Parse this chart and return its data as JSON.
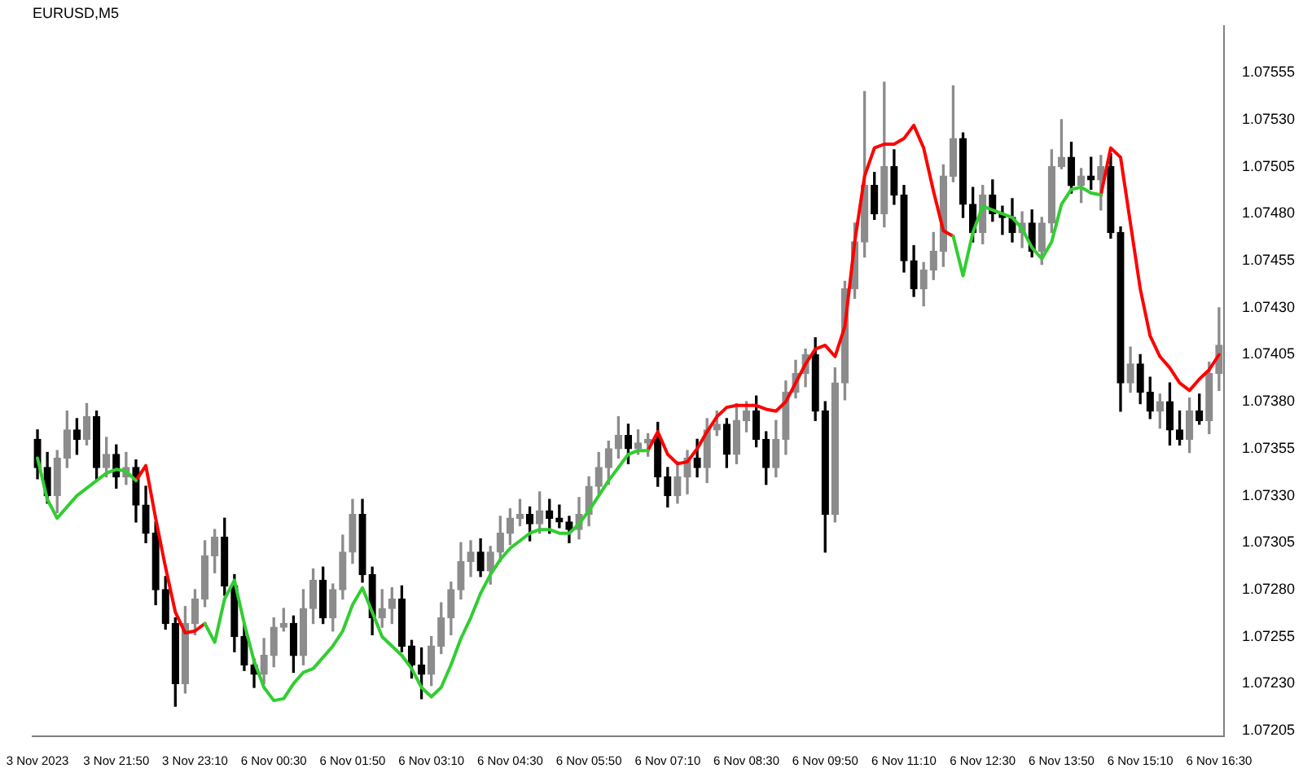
{
  "chart_data": {
    "type": "candlestick",
    "title": "EURUSD,M5",
    "categories": [
      "3 Nov 2023",
      null,
      null,
      null,
      null,
      null,
      null,
      null,
      "3 Nov 21:50",
      null,
      null,
      null,
      null,
      null,
      null,
      null,
      "3 Nov 23:10",
      null,
      null,
      null,
      null,
      null,
      null,
      null,
      "6 Nov 00:30",
      null,
      null,
      null,
      null,
      null,
      null,
      null,
      "6 Nov 01:50",
      null,
      null,
      null,
      null,
      null,
      null,
      null,
      "6 Nov 03:10",
      null,
      null,
      null,
      null,
      null,
      null,
      null,
      "6 Nov 04:30",
      null,
      null,
      null,
      null,
      null,
      null,
      null,
      "6 Nov 05:50",
      null,
      null,
      null,
      null,
      null,
      null,
      null,
      "6 Nov 07:10",
      null,
      null,
      null,
      null,
      null,
      null,
      null,
      "6 Nov 08:30",
      null,
      null,
      null,
      null,
      null,
      null,
      null,
      "6 Nov 09:50",
      null,
      null,
      null,
      null,
      null,
      null,
      null,
      "6 Nov 11:10",
      null,
      null,
      null,
      null,
      null,
      null,
      null,
      "6 Nov 12:30",
      null,
      null,
      null,
      null,
      null,
      null,
      null,
      "6 Nov 13:50",
      null,
      null,
      null,
      null,
      null,
      null,
      null,
      "6 Nov 15:10",
      null,
      null,
      null,
      null,
      null,
      null,
      null,
      "6 Nov 16:30"
    ],
    "ohlc": [
      [
        1.0736,
        1.07365,
        1.07339,
        1.07345
      ],
      [
        1.07345,
        1.07353,
        1.07326,
        1.0733
      ],
      [
        1.0733,
        1.07354,
        1.07321,
        1.0735
      ],
      [
        1.0735,
        1.07375,
        1.07345,
        1.07365
      ],
      [
        1.07365,
        1.07371,
        1.07352,
        1.0736
      ],
      [
        1.0736,
        1.07379,
        1.07357,
        1.07372
      ],
      [
        1.07372,
        1.07375,
        1.07338,
        1.07345
      ],
      [
        1.07345,
        1.07361,
        1.0734,
        1.07352
      ],
      [
        1.07352,
        1.07357,
        1.07334,
        1.0734
      ],
      [
        1.0734,
        1.07353,
        1.07336,
        1.07345
      ],
      [
        1.07345,
        1.07349,
        1.07316,
        1.07325
      ],
      [
        1.07325,
        1.07335,
        1.07305,
        1.0731
      ],
      [
        1.0731,
        1.07316,
        1.07272,
        1.0728
      ],
      [
        1.0728,
        1.07287,
        1.07259,
        1.07262
      ],
      [
        1.07262,
        1.07265,
        1.07218,
        1.0723
      ],
      [
        1.0723,
        1.07271,
        1.07225,
        1.07262
      ],
      [
        1.07262,
        1.0728,
        1.07256,
        1.07275
      ],
      [
        1.07275,
        1.07306,
        1.07271,
        1.07298
      ],
      [
        1.07298,
        1.07312,
        1.07289,
        1.07308
      ],
      [
        1.07308,
        1.07318,
        1.07277,
        1.07282
      ],
      [
        1.07282,
        1.07288,
        1.07247,
        1.07255
      ],
      [
        1.07255,
        1.07262,
        1.07237,
        1.0724
      ],
      [
        1.0724,
        1.07243,
        1.07228,
        1.07235
      ],
      [
        1.07235,
        1.07254,
        1.0723,
        1.07245
      ],
      [
        1.07245,
        1.07265,
        1.07239,
        1.0726
      ],
      [
        1.0726,
        1.0727,
        1.07258,
        1.07262
      ],
      [
        1.07262,
        1.07266,
        1.07236,
        1.07245
      ],
      [
        1.07245,
        1.0728,
        1.0724,
        1.0727
      ],
      [
        1.0727,
        1.07291,
        1.07262,
        1.07285
      ],
      [
        1.07285,
        1.07292,
        1.07262,
        1.07265
      ],
      [
        1.07265,
        1.07283,
        1.07258,
        1.0728
      ],
      [
        1.0728,
        1.07309,
        1.07275,
        1.073
      ],
      [
        1.073,
        1.07328,
        1.07294,
        1.0732
      ],
      [
        1.0732,
        1.07328,
        1.07284,
        1.07288
      ],
      [
        1.07288,
        1.07292,
        1.07256,
        1.07265
      ],
      [
        1.07265,
        1.0728,
        1.0726,
        1.0727
      ],
      [
        1.0727,
        1.07281,
        1.07262,
        1.07275
      ],
      [
        1.07275,
        1.07282,
        1.07247,
        1.0725
      ],
      [
        1.0725,
        1.07253,
        1.07233,
        1.0724
      ],
      [
        1.0724,
        1.07249,
        1.07222,
        1.07235
      ],
      [
        1.07235,
        1.07255,
        1.07229,
        1.0725
      ],
      [
        1.0725,
        1.07273,
        1.07246,
        1.07265
      ],
      [
        1.07265,
        1.07284,
        1.07256,
        1.0728
      ],
      [
        1.0728,
        1.07305,
        1.07275,
        1.07295
      ],
      [
        1.07295,
        1.07306,
        1.07287,
        1.073
      ],
      [
        1.073,
        1.07307,
        1.07287,
        1.0729
      ],
      [
        1.0729,
        1.07303,
        1.07283,
        1.073
      ],
      [
        1.073,
        1.07319,
        1.07295,
        1.0731
      ],
      [
        1.0731,
        1.07323,
        1.07304,
        1.07318
      ],
      [
        1.07318,
        1.07328,
        1.07314,
        1.0732
      ],
      [
        1.0732,
        1.07324,
        1.07306,
        1.07315
      ],
      [
        1.07315,
        1.07332,
        1.0731,
        1.07322
      ],
      [
        1.07322,
        1.07328,
        1.0731,
        1.07318
      ],
      [
        1.07318,
        1.07325,
        1.07313,
        1.07316
      ],
      [
        1.07316,
        1.07319,
        1.07305,
        1.07312
      ],
      [
        1.07312,
        1.07329,
        1.07307,
        1.0732
      ],
      [
        1.0732,
        1.0734,
        1.07314,
        1.07335
      ],
      [
        1.07335,
        1.07353,
        1.07331,
        1.07345
      ],
      [
        1.07345,
        1.07359,
        1.07336,
        1.07355
      ],
      [
        1.07355,
        1.07372,
        1.0735,
        1.07362
      ],
      [
        1.07362,
        1.07368,
        1.07347,
        1.07355
      ],
      [
        1.07355,
        1.07365,
        1.07352,
        1.07358
      ],
      [
        1.07358,
        1.07363,
        1.07351,
        1.0736
      ],
      [
        1.0736,
        1.07369,
        1.07335,
        1.0734
      ],
      [
        1.0734,
        1.07345,
        1.07324,
        1.0733
      ],
      [
        1.0733,
        1.07348,
        1.07326,
        1.0734
      ],
      [
        1.0734,
        1.07354,
        1.07331,
        1.0735
      ],
      [
        1.0735,
        1.0736,
        1.0734,
        1.07345
      ],
      [
        1.07345,
        1.07371,
        1.07337,
        1.07365
      ],
      [
        1.07365,
        1.07375,
        1.07362,
        1.07368
      ],
      [
        1.07368,
        1.07371,
        1.07345,
        1.07352
      ],
      [
        1.07352,
        1.07379,
        1.07347,
        1.0737
      ],
      [
        1.0737,
        1.0738,
        1.07364,
        1.07375
      ],
      [
        1.07375,
        1.07383,
        1.07356,
        1.0736
      ],
      [
        1.0736,
        1.07364,
        1.07336,
        1.07345
      ],
      [
        1.07345,
        1.0737,
        1.0734,
        1.0736
      ],
      [
        1.0736,
        1.07391,
        1.07352,
        1.07385
      ],
      [
        1.07385,
        1.07402,
        1.07382,
        1.07395
      ],
      [
        1.07395,
        1.07408,
        1.07388,
        1.07405
      ],
      [
        1.07405,
        1.07414,
        1.0737,
        1.07375
      ],
      [
        1.07375,
        1.0738,
        1.073,
        1.0732
      ],
      [
        1.0732,
        1.07398,
        1.07316,
        1.0739
      ],
      [
        1.0739,
        1.07444,
        1.07381,
        1.0744
      ],
      [
        1.0744,
        1.07475,
        1.07435,
        1.07465
      ],
      [
        1.07465,
        1.07545,
        1.07457,
        1.07495
      ],
      [
        1.07495,
        1.07502,
        1.07477,
        1.0748
      ],
      [
        1.0748,
        1.0755,
        1.07473,
        1.07505
      ],
      [
        1.07505,
        1.07514,
        1.07485,
        1.0749
      ],
      [
        1.0749,
        1.07495,
        1.07449,
        1.07455
      ],
      [
        1.07455,
        1.07463,
        1.07436,
        1.0744
      ],
      [
        1.0744,
        1.07454,
        1.07431,
        1.0745
      ],
      [
        1.0745,
        1.0747,
        1.07445,
        1.0746
      ],
      [
        1.0746,
        1.07506,
        1.07452,
        1.075
      ],
      [
        1.075,
        1.07548,
        1.07497,
        1.0752
      ],
      [
        1.0752,
        1.07523,
        1.07478,
        1.07485
      ],
      [
        1.07485,
        1.07494,
        1.07465,
        1.0747
      ],
      [
        1.0747,
        1.07495,
        1.07464,
        1.0749
      ],
      [
        1.0749,
        1.07498,
        1.07476,
        1.0748
      ],
      [
        1.0748,
        1.07484,
        1.07469,
        1.07478
      ],
      [
        1.07478,
        1.07488,
        1.07465,
        1.0747
      ],
      [
        1.0747,
        1.07481,
        1.07462,
        1.07475
      ],
      [
        1.07475,
        1.07482,
        1.07457,
        1.0746
      ],
      [
        1.0746,
        1.07478,
        1.07453,
        1.07475
      ],
      [
        1.07475,
        1.07514,
        1.0747,
        1.07505
      ],
      [
        1.07505,
        1.0753,
        1.07504,
        1.0751
      ],
      [
        1.0751,
        1.07518,
        1.07491,
        1.07495
      ],
      [
        1.07495,
        1.07504,
        1.07486,
        1.075
      ],
      [
        1.075,
        1.0751,
        1.07493,
        1.07498
      ],
      [
        1.07498,
        1.07511,
        1.07482,
        1.07505
      ],
      [
        1.07505,
        1.07512,
        1.07467,
        1.0747
      ],
      [
        1.0747,
        1.07473,
        1.07375,
        1.0739
      ],
      [
        1.0739,
        1.07409,
        1.07385,
        1.074
      ],
      [
        1.074,
        1.07405,
        1.07379,
        1.07385
      ],
      [
        1.07385,
        1.07393,
        1.07371,
        1.07375
      ],
      [
        1.07375,
        1.07384,
        1.07366,
        1.0738
      ],
      [
        1.0738,
        1.0739,
        1.07357,
        1.07365
      ],
      [
        1.07365,
        1.07375,
        1.07357,
        1.0736
      ],
      [
        1.0736,
        1.07382,
        1.07353,
        1.07375
      ],
      [
        1.07375,
        1.07384,
        1.07368,
        1.0737
      ],
      [
        1.0737,
        1.07401,
        1.07363,
        1.07395
      ],
      [
        1.07395,
        1.0743,
        1.07386,
        1.0741
      ]
    ],
    "colors": [
      "#000000",
      "#000000",
      "#8c8c8c",
      "#8c8c8c",
      "#000000",
      "#8c8c8c",
      "#000000",
      "#8c8c8c",
      "#000000",
      "#8c8c8c",
      "#000000",
      "#000000",
      "#000000",
      "#000000",
      "#000000",
      "#8c8c8c",
      "#8c8c8c",
      "#8c8c8c",
      "#8c8c8c",
      "#000000",
      "#000000",
      "#000000",
      "#000000",
      "#8c8c8c",
      "#8c8c8c",
      "#8c8c8c",
      "#000000",
      "#8c8c8c",
      "#8c8c8c",
      "#000000",
      "#8c8c8c",
      "#8c8c8c",
      "#8c8c8c",
      "#000000",
      "#000000",
      "#8c8c8c",
      "#8c8c8c",
      "#000000",
      "#000000",
      "#000000",
      "#8c8c8c",
      "#8c8c8c",
      "#8c8c8c",
      "#8c8c8c",
      "#8c8c8c",
      "#000000",
      "#8c8c8c",
      "#8c8c8c",
      "#8c8c8c",
      "#8c8c8c",
      "#000000",
      "#8c8c8c",
      "#000000",
      "#000000",
      "#000000",
      "#8c8c8c",
      "#8c8c8c",
      "#8c8c8c",
      "#8c8c8c",
      "#8c8c8c",
      "#000000",
      "#8c8c8c",
      "#8c8c8c",
      "#000000",
      "#000000",
      "#8c8c8c",
      "#8c8c8c",
      "#000000",
      "#8c8c8c",
      "#8c8c8c",
      "#000000",
      "#8c8c8c",
      "#8c8c8c",
      "#000000",
      "#000000",
      "#8c8c8c",
      "#8c8c8c",
      "#8c8c8c",
      "#8c8c8c",
      "#000000",
      "#000000",
      "#8c8c8c",
      "#8c8c8c",
      "#8c8c8c",
      "#8c8c8c",
      "#000000",
      "#8c8c8c",
      "#000000",
      "#000000",
      "#000000",
      "#8c8c8c",
      "#8c8c8c",
      "#8c8c8c",
      "#8c8c8c",
      "#000000",
      "#000000",
      "#8c8c8c",
      "#000000",
      "#000000",
      "#000000",
      "#8c8c8c",
      "#000000",
      "#8c8c8c",
      "#8c8c8c",
      "#8c8c8c",
      "#000000",
      "#8c8c8c",
      "#000000",
      "#8c8c8c",
      "#000000",
      "#000000",
      "#8c8c8c",
      "#000000",
      "#000000",
      "#8c8c8c",
      "#000000",
      "#000000",
      "#8c8c8c",
      "#000000",
      "#8c8c8c",
      "#8c8c8c"
    ],
    "series": [
      {
        "type": "line",
        "color": "#32cd32",
        "values": [
          1.0735,
          1.07328,
          1.07318,
          1.07324,
          1.0733,
          1.07334,
          1.07338,
          1.07342,
          1.07344,
          1.07343,
          1.07338,
          null,
          null,
          null,
          null,
          null,
          null,
          1.07262,
          1.07252,
          1.07275,
          1.07285,
          1.07262,
          1.07242,
          1.07228,
          1.07221,
          1.07222,
          1.0723,
          1.07236,
          1.07238,
          1.07244,
          1.0725,
          1.07258,
          1.07272,
          1.07281,
          1.07268,
          1.07255,
          1.0725,
          1.07245,
          1.07238,
          1.07228,
          1.07223,
          1.07228,
          1.0724,
          1.07254,
          1.07265,
          1.07278,
          1.07288,
          1.07296,
          1.07302,
          1.07306,
          1.0731,
          1.07312,
          1.07312,
          1.0731,
          1.0731,
          1.07315,
          1.07322,
          1.0733,
          1.07338,
          1.07345,
          1.07352,
          1.07354,
          1.07354,
          null,
          null,
          null,
          null,
          null,
          null,
          null,
          null,
          null,
          null,
          null,
          null,
          null,
          null,
          null,
          null,
          null,
          null,
          null,
          null,
          null,
          null,
          null,
          null,
          null,
          null,
          null,
          null,
          null,
          null,
          1.07468,
          1.07447,
          1.0747,
          1.07484,
          1.07482,
          1.0748,
          1.07478,
          1.07472,
          1.07462,
          1.07456,
          1.07465,
          1.07485,
          1.07493,
          1.07494,
          1.07491,
          1.0749,
          null,
          null,
          null,
          null,
          null,
          null,
          null,
          null,
          null,
          null,
          null,
          null
        ]
      },
      {
        "type": "line",
        "color": "#ff0000",
        "values": [
          null,
          null,
          null,
          null,
          null,
          null,
          null,
          null,
          null,
          null,
          1.07338,
          1.07346,
          1.07318,
          1.07292,
          1.07268,
          1.07257,
          1.07258,
          1.07262,
          null,
          null,
          null,
          null,
          null,
          null,
          null,
          null,
          null,
          null,
          null,
          null,
          null,
          null,
          null,
          null,
          null,
          null,
          null,
          null,
          null,
          null,
          null,
          null,
          null,
          null,
          null,
          null,
          null,
          null,
          null,
          null,
          null,
          null,
          null,
          null,
          null,
          null,
          null,
          null,
          null,
          null,
          null,
          null,
          1.07354,
          1.07364,
          1.07352,
          1.07347,
          1.07348,
          1.07355,
          1.07364,
          1.07372,
          1.07377,
          1.07378,
          1.07378,
          1.07378,
          1.07376,
          1.07375,
          1.0738,
          1.0739,
          1.074,
          1.07408,
          1.0741,
          1.07404,
          1.0742,
          1.07465,
          1.075,
          1.07515,
          1.07517,
          1.07517,
          1.0752,
          1.07527,
          1.07515,
          1.07492,
          1.07471,
          1.07468,
          null,
          null,
          null,
          null,
          null,
          null,
          null,
          null,
          null,
          null,
          null,
          null,
          null,
          null,
          1.0749,
          1.07515,
          1.0751,
          1.07475,
          1.0744,
          1.07415,
          1.07404,
          1.07398,
          1.0739,
          1.07386,
          1.07392,
          1.07397,
          1.07405
        ]
      }
    ],
    "ylim": [
      1.07202,
      1.0758
    ],
    "yticks": [
      {
        "value": 1.07205,
        "label": "1.07205"
      },
      {
        "value": 1.0723,
        "label": "1.07230"
      },
      {
        "value": 1.07255,
        "label": "1.07255"
      },
      {
        "value": 1.0728,
        "label": "1.07280"
      },
      {
        "value": 1.07305,
        "label": "1.07305"
      },
      {
        "value": 1.0733,
        "label": "1.07330"
      },
      {
        "value": 1.07355,
        "label": "1.07355"
      },
      {
        "value": 1.0738,
        "label": "1.07380"
      },
      {
        "value": 1.07405,
        "label": "1.07405"
      },
      {
        "value": 1.0743,
        "label": "1.07430"
      },
      {
        "value": 1.07455,
        "label": "1.07455"
      },
      {
        "value": 1.0748,
        "label": "1.07480"
      },
      {
        "value": 1.07505,
        "label": "1.07505"
      },
      {
        "value": 1.0753,
        "label": "1.07530"
      },
      {
        "value": 1.07555,
        "label": "1.07555"
      }
    ]
  }
}
